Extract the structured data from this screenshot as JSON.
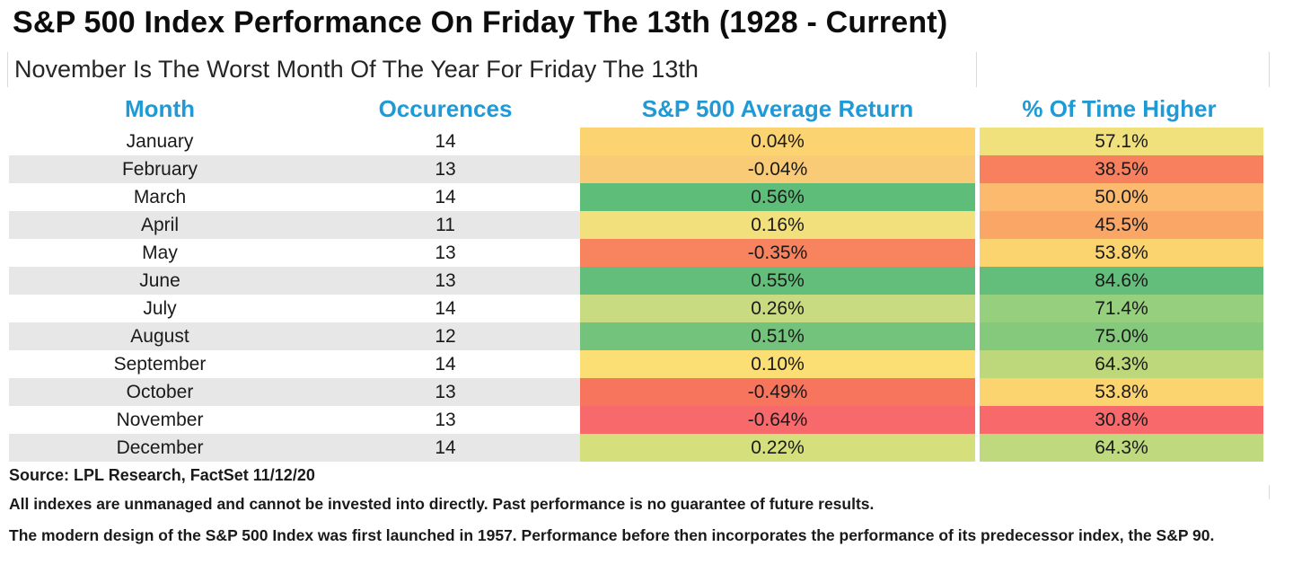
{
  "title": "S&P 500 Index Performance On Friday The 13th (1928 - Current)",
  "subtitle": "November Is The Worst Month Of The Year For Friday The 13th",
  "table": {
    "headers": [
      "Month",
      "Occurences",
      "S&P 500 Average Return",
      "% Of Time Higher"
    ],
    "header_color": "#1E9BD7",
    "stripe_color": "#E7E7E7",
    "rows": [
      {
        "month": "January",
        "occurences": "14",
        "avg_return": "0.04%",
        "avg_return_color": "#FBD471",
        "pct_higher": "57.1%",
        "pct_higher_color": "#F0E17C"
      },
      {
        "month": "February",
        "occurences": "13",
        "avg_return": "-0.04%",
        "avg_return_color": "#FACB77",
        "pct_higher": "38.5%",
        "pct_higher_color": "#F8805F"
      },
      {
        "month": "March",
        "occurences": "14",
        "avg_return": "0.56%",
        "avg_return_color": "#5FBD7A",
        "pct_higher": "50.0%",
        "pct_higher_color": "#FBBA6E"
      },
      {
        "month": "April",
        "occurences": "11",
        "avg_return": "0.16%",
        "avg_return_color": "#F2E07D",
        "pct_higher": "45.5%",
        "pct_higher_color": "#FAA667"
      },
      {
        "month": "May",
        "occurences": "13",
        "avg_return": "-0.35%",
        "avg_return_color": "#F8845F",
        "pct_higher": "53.8%",
        "pct_higher_color": "#FCD46F"
      },
      {
        "month": "June",
        "occurences": "13",
        "avg_return": "0.55%",
        "avg_return_color": "#63BE7B",
        "pct_higher": "84.6%",
        "pct_higher_color": "#63BE7B"
      },
      {
        "month": "July",
        "occurences": "14",
        "avg_return": "0.26%",
        "avg_return_color": "#C8DB80",
        "pct_higher": "71.4%",
        "pct_higher_color": "#96CF7D"
      },
      {
        "month": "August",
        "occurences": "12",
        "avg_return": "0.51%",
        "avg_return_color": "#74C37C",
        "pct_higher": "75.0%",
        "pct_higher_color": "#85C97C"
      },
      {
        "month": "September",
        "occurences": "14",
        "avg_return": "0.10%",
        "avg_return_color": "#FBDF75",
        "pct_higher": "64.3%",
        "pct_higher_color": "#BDD87B"
      },
      {
        "month": "October",
        "occurences": "13",
        "avg_return": "-0.49%",
        "avg_return_color": "#F7755D",
        "pct_higher": "53.8%",
        "pct_higher_color": "#FCD46F"
      },
      {
        "month": "November",
        "occurences": "13",
        "avg_return": "-0.64%",
        "avg_return_color": "#F8696B",
        "pct_higher": "30.8%",
        "pct_higher_color": "#F8696B"
      },
      {
        "month": "December",
        "occurences": "14",
        "avg_return": "0.22%",
        "avg_return_color": "#D5DF7C",
        "pct_higher": "64.3%",
        "pct_higher_color": "#BFD97E"
      }
    ]
  },
  "footer": {
    "source": "Source: LPL Research, FactSet 11/12/20",
    "disclaimer1": "All indexes are unmanaged and cannot be invested into directly. Past performance is no guarantee of future results.",
    "disclaimer2": "The modern design of the S&P 500 Index was first launched in 1957. Performance before then incorporates the performance of its predecessor index, the S&P 90."
  },
  "chart_data": {
    "type": "table",
    "title": "S&P 500 Index Performance On Friday The 13th (1928 - Current)",
    "subtitle": "November Is The Worst Month Of The Year For Friday The 13th",
    "columns": [
      "Month",
      "Occurences",
      "S&P 500 Average Return",
      "% Of Time Higher"
    ],
    "categories": [
      "January",
      "February",
      "March",
      "April",
      "May",
      "June",
      "July",
      "August",
      "September",
      "October",
      "November",
      "December"
    ],
    "series": [
      {
        "name": "Occurences",
        "values": [
          14,
          13,
          14,
          11,
          13,
          13,
          14,
          12,
          14,
          13,
          13,
          14
        ]
      },
      {
        "name": "S&P 500 Average Return (%)",
        "values": [
          0.04,
          -0.04,
          0.56,
          0.16,
          -0.35,
          0.55,
          0.26,
          0.51,
          0.1,
          -0.49,
          -0.64,
          0.22
        ]
      },
      {
        "name": "% Of Time Higher",
        "values": [
          57.1,
          38.5,
          50.0,
          45.5,
          53.8,
          84.6,
          71.4,
          75.0,
          64.3,
          53.8,
          30.8,
          64.3
        ]
      }
    ],
    "layout_hints": {
      "heatmap_columns": [
        "S&P 500 Average Return",
        "% Of Time Higher"
      ],
      "color_scale": [
        "#F8696B",
        "#FFEB84",
        "#63BE7B"
      ],
      "zebra_striping": true,
      "grid": false,
      "legend": "none"
    }
  }
}
